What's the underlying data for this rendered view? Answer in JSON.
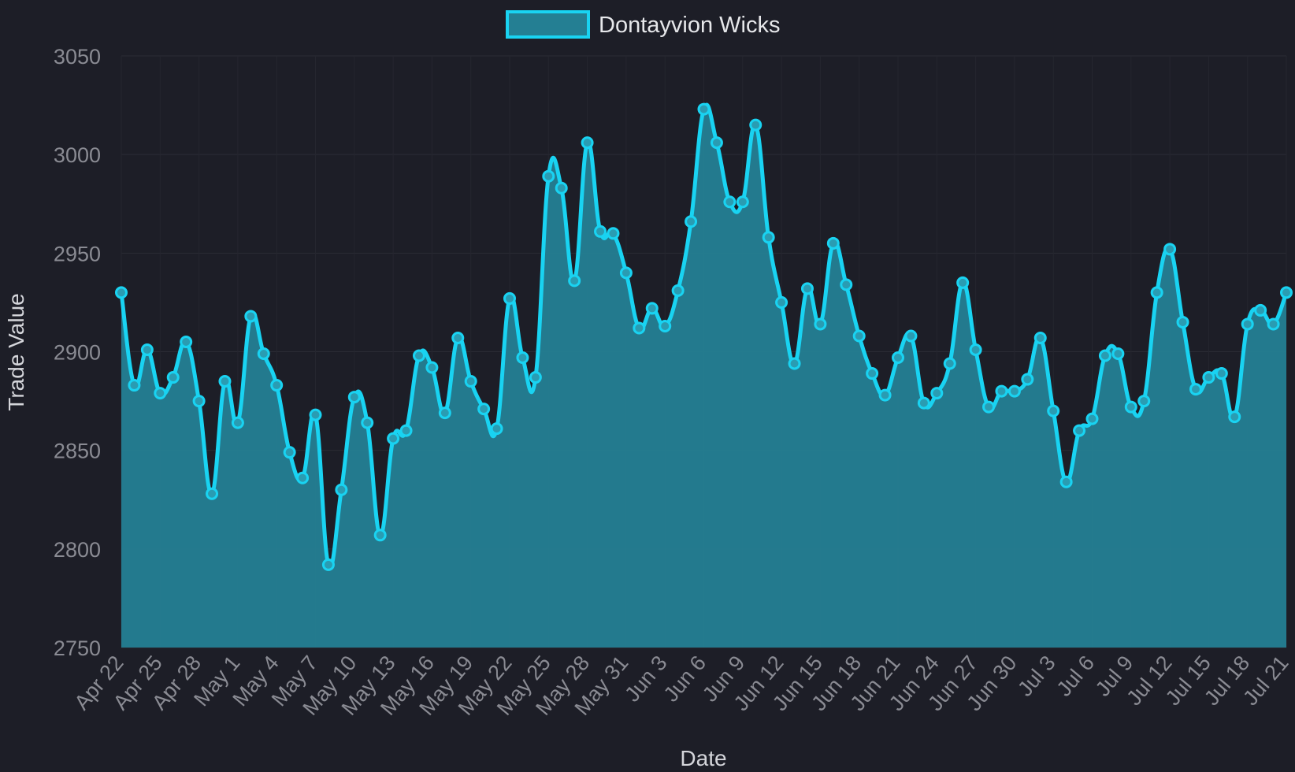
{
  "chart_data": {
    "type": "area",
    "legend": {
      "position": "top-center",
      "entries": [
        "Dontayvion Wicks"
      ]
    },
    "series": [
      {
        "name": "Dontayvion Wicks",
        "color": "#19d3f2",
        "fill": "#247f93",
        "values": [
          2930,
          2883,
          2901,
          2879,
          2887,
          2905,
          2875,
          2828,
          2885,
          2864,
          2918,
          2899,
          2883,
          2849,
          2836,
          2868,
          2792,
          2830,
          2877,
          2864,
          2807,
          2856,
          2860,
          2898,
          2892,
          2869,
          2907,
          2885,
          2871,
          2861,
          2927,
          2897,
          2887,
          2989,
          2983,
          2936,
          3006,
          2961,
          2960,
          2940,
          2912,
          2922,
          2913,
          2931,
          2966,
          3023,
          3006,
          2976,
          2976,
          3015,
          2958,
          2925,
          2894,
          2932,
          2914,
          2955,
          2934,
          2908,
          2889,
          2878,
          2897,
          2908,
          2874,
          2879,
          2894,
          2935,
          2901,
          2872,
          2880,
          2880,
          2886,
          2907,
          2870,
          2834,
          2860,
          2866,
          2898,
          2899,
          2872,
          2875,
          2930,
          2952,
          2915,
          2881,
          2887,
          2889,
          2867,
          2914,
          2921,
          2914,
          2930
        ]
      }
    ],
    "x_start": "Apr 22",
    "x_end": "Jul 21",
    "x_tick_labels": [
      "Apr 22",
      "Apr 25",
      "Apr 28",
      "May 1",
      "May 4",
      "May 7",
      "May 10",
      "May 13",
      "May 16",
      "May 19",
      "May 22",
      "May 25",
      "May 28",
      "May 31",
      "Jun 3",
      "Jun 6",
      "Jun 9",
      "Jun 12",
      "Jun 15",
      "Jun 18",
      "Jun 21",
      "Jun 24",
      "Jun 27",
      "Jun 30",
      "Jul 3",
      "Jul 6",
      "Jul 9",
      "Jul 12",
      "Jul 15",
      "Jul 18",
      "Jul 21"
    ],
    "y_tick_labels": [
      "3050",
      "3000",
      "2950",
      "2900",
      "2850",
      "2800",
      "2750"
    ],
    "ylim": [
      2750,
      3050
    ],
    "xlabel": "Date",
    "ylabel": "Trade Value",
    "grid": true
  }
}
